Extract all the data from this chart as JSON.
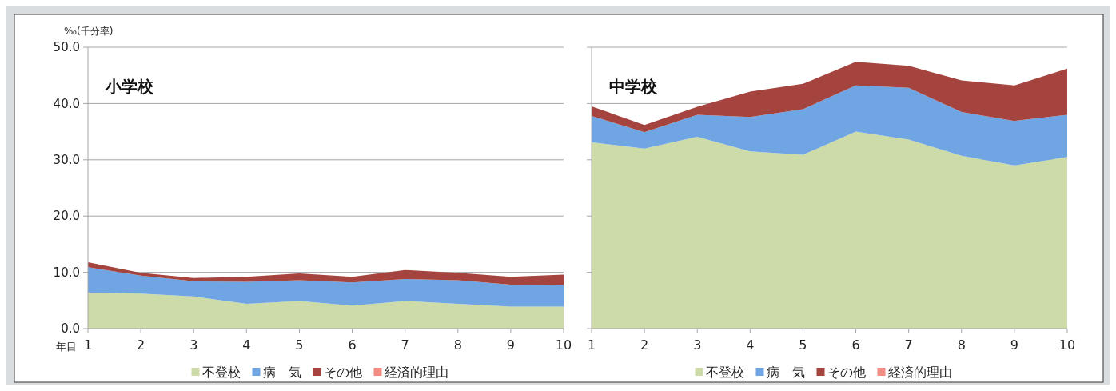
{
  "chart_data": [
    {
      "type": "area",
      "title": "小学校",
      "xlabel": "年目",
      "ylabel": "‰(千分率)",
      "stacked": true,
      "x": [
        1,
        2,
        3,
        4,
        5,
        6,
        7,
        8,
        9,
        10
      ],
      "xlim": [
        1,
        10
      ],
      "xticks": [
        1,
        2,
        3,
        4,
        5,
        6,
        7,
        8,
        9,
        10
      ],
      "ylim": [
        0,
        50
      ],
      "yticks": [
        {
          "value": 0,
          "label": "0.0"
        },
        {
          "value": 10,
          "label": "10.0"
        },
        {
          "value": 20,
          "label": "20.0"
        },
        {
          "value": 30,
          "label": "30.0"
        },
        {
          "value": 40,
          "label": "40.0"
        },
        {
          "value": 50,
          "label": "50.0"
        }
      ],
      "grid": "y",
      "legend": "bottom",
      "series": [
        {
          "name": "不登校",
          "color": "#cddba8",
          "values": [
            6.4,
            6.2,
            5.7,
            4.4,
            4.9,
            4.1,
            4.9,
            4.4,
            3.9,
            3.9
          ]
        },
        {
          "name": "病　気",
          "color": "#6fa5e2",
          "values": [
            4.5,
            3.2,
            2.7,
            3.9,
            3.7,
            4.1,
            3.9,
            4.2,
            3.9,
            3.8
          ]
        },
        {
          "name": "その他",
          "color": "#a5443f",
          "values": [
            0.9,
            0.5,
            0.6,
            0.9,
            1.2,
            1.0,
            1.6,
            1.3,
            1.4,
            1.9
          ]
        },
        {
          "name": "経済的理由",
          "color": "#f28b82",
          "values": [
            null,
            null,
            null,
            null,
            null,
            null,
            null,
            null,
            null,
            null
          ]
        }
      ]
    },
    {
      "type": "area",
      "title": "中学校",
      "stacked": true,
      "x": [
        1,
        2,
        3,
        4,
        5,
        6,
        7,
        8,
        9,
        10
      ],
      "xlim": [
        1,
        10
      ],
      "xticks": [
        1,
        2,
        3,
        4,
        5,
        6,
        7,
        8,
        9,
        10
      ],
      "ylim": [
        0,
        50
      ],
      "yticks": [
        {
          "value": 0,
          "label": null
        },
        {
          "value": 10,
          "label": null
        },
        {
          "value": 20,
          "label": null
        },
        {
          "value": 30,
          "label": null
        },
        {
          "value": 40,
          "label": null
        },
        {
          "value": 50,
          "label": null
        }
      ],
      "tick_labels": "x",
      "grid": "y",
      "legend": "bottom",
      "series": [
        {
          "name": "不登校",
          "color": "#cddba8",
          "values": [
            33.1,
            32.0,
            34.1,
            31.5,
            30.9,
            35.0,
            33.6,
            30.7,
            29.0,
            30.5
          ]
        },
        {
          "name": "病　気",
          "color": "#6fa5e2",
          "values": [
            4.7,
            2.9,
            3.9,
            6.1,
            8.1,
            8.2,
            9.2,
            7.8,
            7.9,
            7.5
          ]
        },
        {
          "name": "その他",
          "color": "#a5443f",
          "values": [
            1.7,
            1.3,
            1.4,
            4.5,
            4.5,
            4.2,
            3.9,
            5.6,
            6.3,
            8.2
          ]
        },
        {
          "name": "経済的理由",
          "color": "#f28b82",
          "values": [
            null,
            null,
            null,
            null,
            null,
            null,
            null,
            null,
            null,
            null
          ]
        }
      ]
    }
  ]
}
